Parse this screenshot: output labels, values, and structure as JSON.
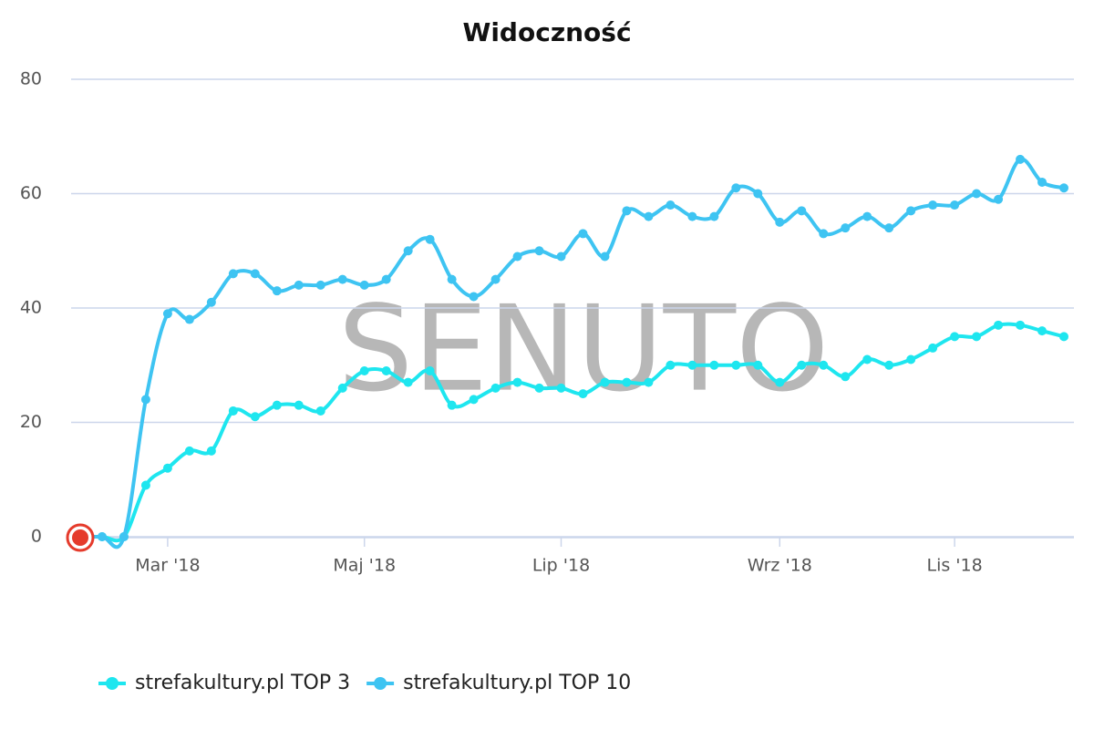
{
  "chart_data": {
    "type": "line",
    "title": "Widoczność",
    "watermark": "SENUTO",
    "categories": [
      null,
      null,
      null,
      null,
      "Mar '18",
      null,
      null,
      null,
      null,
      null,
      null,
      null,
      null,
      "Maj '18",
      null,
      null,
      null,
      null,
      null,
      null,
      null,
      null,
      "Lip '18",
      null,
      null,
      null,
      null,
      null,
      null,
      null,
      null,
      null,
      "Wrz '18",
      null,
      null,
      null,
      null,
      null,
      null,
      null,
      "Lis '18",
      null,
      null,
      null,
      null,
      null
    ],
    "series": [
      {
        "name": "strefakultury.pl TOP 3",
        "color": "#1ee6ef",
        "values": [
          0,
          0,
          0,
          9,
          12,
          15,
          15,
          22,
          21,
          23,
          23,
          22,
          26,
          29,
          29,
          27,
          29,
          23,
          24,
          26,
          27,
          26,
          26,
          25,
          27,
          27,
          27,
          30,
          30,
          30,
          30,
          30,
          27,
          30,
          30,
          28,
          31,
          30,
          31,
          33,
          35,
          35,
          37,
          37,
          36,
          35
        ]
      },
      {
        "name": "strefakultury.pl TOP 10",
        "color": "#3ec4f2",
        "values": [
          0,
          0,
          0,
          24,
          39,
          38,
          41,
          46,
          46,
          43,
          44,
          44,
          45,
          44,
          45,
          50,
          52,
          45,
          42,
          45,
          49,
          50,
          49,
          53,
          49,
          57,
          56,
          58,
          56,
          56,
          61,
          60,
          55,
          57,
          53,
          54,
          56,
          54,
          57,
          58,
          58,
          60,
          59,
          66,
          62,
          61
        ]
      }
    ],
    "ylim": [
      0,
      80
    ],
    "yticks": [
      0,
      20,
      40,
      60,
      80
    ],
    "grid": true,
    "legend": "bottom-left"
  }
}
